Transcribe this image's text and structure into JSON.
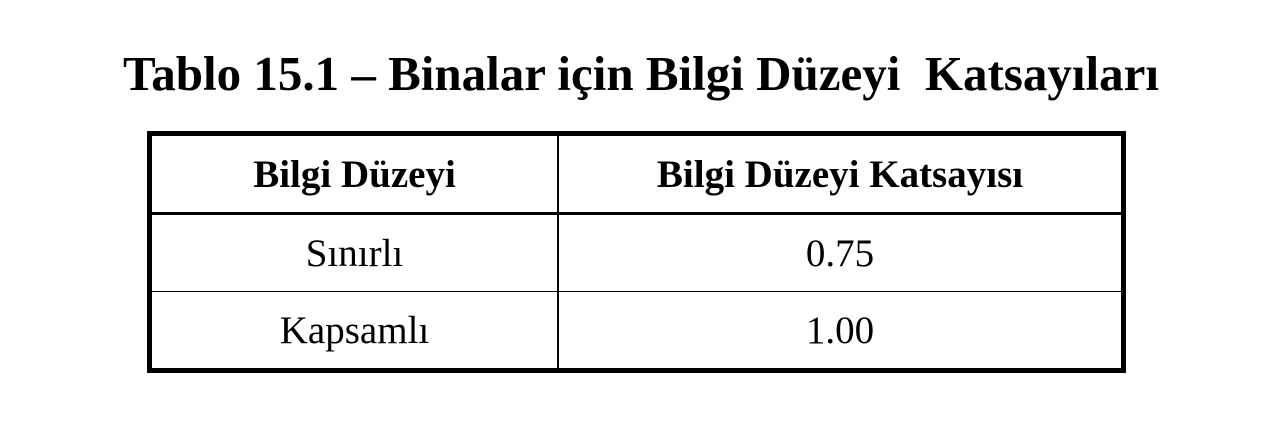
{
  "title": "Tablo 15.1 – Binalar için Bilgi Düzeyi  Katsayıları",
  "table": {
    "headers": [
      "Bilgi Düzeyi",
      "Bilgi Düzeyi Katsayısı"
    ],
    "rows": [
      [
        "Sınırlı",
        "0.75"
      ],
      [
        "Kapsamlı",
        "1.00"
      ]
    ]
  }
}
